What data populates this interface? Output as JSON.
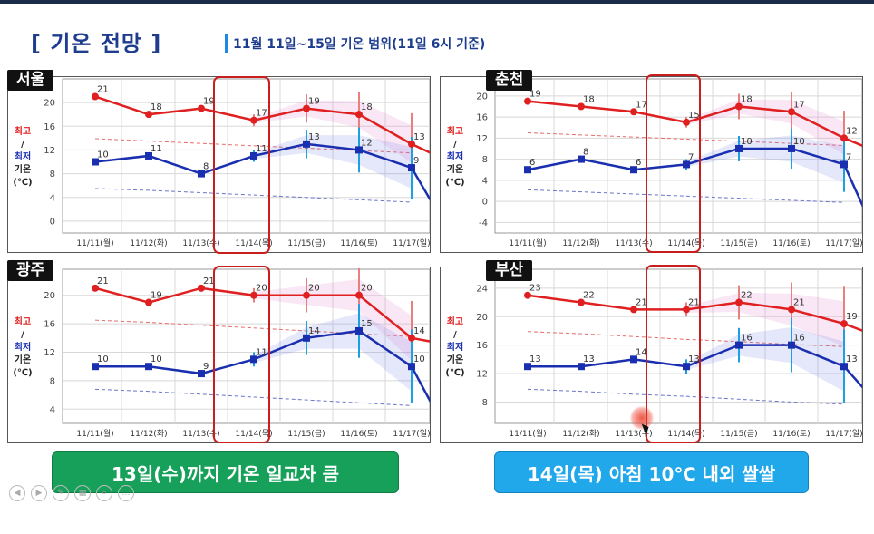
{
  "header": {
    "title": "[ 기온 전망 ]",
    "subtitle": "11월 11일~15일 기온 범위(11일 6시 기준)"
  },
  "y_axis_label": {
    "hi": "최고",
    "lo": "최저",
    "t1": "기온",
    "t2": "(℃)"
  },
  "colors": {
    "max": "#e02020",
    "min": "#1a2fb0",
    "highlight": "#c81e1e"
  },
  "chart_data": [
    {
      "type": "line",
      "city": "서울",
      "categories": [
        "11/11(월)",
        "11/12(화)",
        "11/13(수)",
        "11/14(목)",
        "11/15(금)",
        "11/16(토)",
        "11/17(일)"
      ],
      "yticks": [
        0,
        4,
        8,
        12,
        16,
        20
      ],
      "ylim": [
        -2,
        22
      ],
      "series": [
        {
          "name": "최고",
          "values": [
            21,
            18,
            19,
            17,
            19,
            18,
            13
          ]
        },
        {
          "name": "최저",
          "values": [
            10,
            11,
            8,
            11,
            13,
            12,
            9
          ]
        }
      ],
      "extension": {
        "max": 11.5,
        "min": 3.5
      },
      "normal": {
        "max": [
          13.9,
          13.5,
          13.1,
          12.7,
          12.3,
          11.9,
          11.5
        ],
        "min": [
          5.5,
          5.2,
          4.8,
          4.4,
          4.0,
          3.6,
          3.2
        ]
      }
    },
    {
      "type": "line",
      "city": "춘천",
      "categories": [
        "11/11(월)",
        "11/12(화)",
        "11/13(수)",
        "11/14(목)",
        "11/15(금)",
        "11/16(토)",
        "11/17(일)"
      ],
      "yticks": [
        -4,
        0,
        4,
        8,
        12,
        16,
        20
      ],
      "ylim": [
        -6,
        21
      ],
      "series": [
        {
          "name": "최고",
          "values": [
            19,
            18,
            17,
            15,
            18,
            17,
            12
          ]
        },
        {
          "name": "최저",
          "values": [
            6,
            8,
            6,
            7,
            10,
            10,
            7
          ]
        }
      ],
      "extension": {
        "max": 10.5,
        "min": -1
      },
      "normal": {
        "max": [
          13.0,
          12.6,
          12.2,
          11.8,
          11.4,
          11.0,
          10.6
        ],
        "min": [
          2.2,
          1.8,
          1.4,
          1.0,
          0.6,
          0.2,
          -0.2
        ]
      }
    },
    {
      "type": "line",
      "city": "광주",
      "categories": [
        "11/11(월)",
        "11/12(화)",
        "11/13(수)",
        "11/14(목)",
        "11/15(금)",
        "11/16(토)",
        "11/17(일)"
      ],
      "yticks": [
        4,
        8,
        12,
        16,
        20
      ],
      "ylim": [
        2,
        22
      ],
      "series": [
        {
          "name": "최고",
          "values": [
            21,
            19,
            21,
            20,
            20,
            20,
            14
          ]
        },
        {
          "name": "최저",
          "values": [
            10,
            10,
            9,
            11,
            14,
            15,
            10
          ]
        }
      ],
      "extension": {
        "max": 13.5,
        "min": 5
      },
      "normal": {
        "max": [
          16.5,
          16.2,
          15.8,
          15.4,
          15.0,
          14.6,
          14.2
        ],
        "min": [
          6.8,
          6.5,
          6.1,
          5.7,
          5.3,
          4.9,
          4.5
        ]
      }
    },
    {
      "type": "line",
      "city": "부산",
      "categories": [
        "11/11(월)",
        "11/12(화)",
        "11/13(수)",
        "11/14(목)",
        "11/15(금)",
        "11/16(토)",
        "11/17(일)"
      ],
      "yticks": [
        8,
        12,
        16,
        20,
        24
      ],
      "ylim": [
        5,
        25
      ],
      "series": [
        {
          "name": "최고",
          "values": [
            23,
            22,
            21,
            21,
            22,
            21,
            19
          ]
        },
        {
          "name": "최저",
          "values": [
            13,
            13,
            14,
            13,
            16,
            16,
            13
          ]
        }
      ],
      "extension": {
        "max": 18,
        "min": 10
      },
      "normal": {
        "max": [
          17.9,
          17.6,
          17.2,
          16.8,
          16.5,
          16.1,
          15.8
        ],
        "min": [
          9.8,
          9.5,
          9.1,
          8.8,
          8.4,
          8.0,
          7.7
        ]
      }
    }
  ],
  "callouts": {
    "left": "13일(수)까지 기온 일교차 큼",
    "right": "14일(목) 아침 10℃ 내외 쌀쌀"
  }
}
